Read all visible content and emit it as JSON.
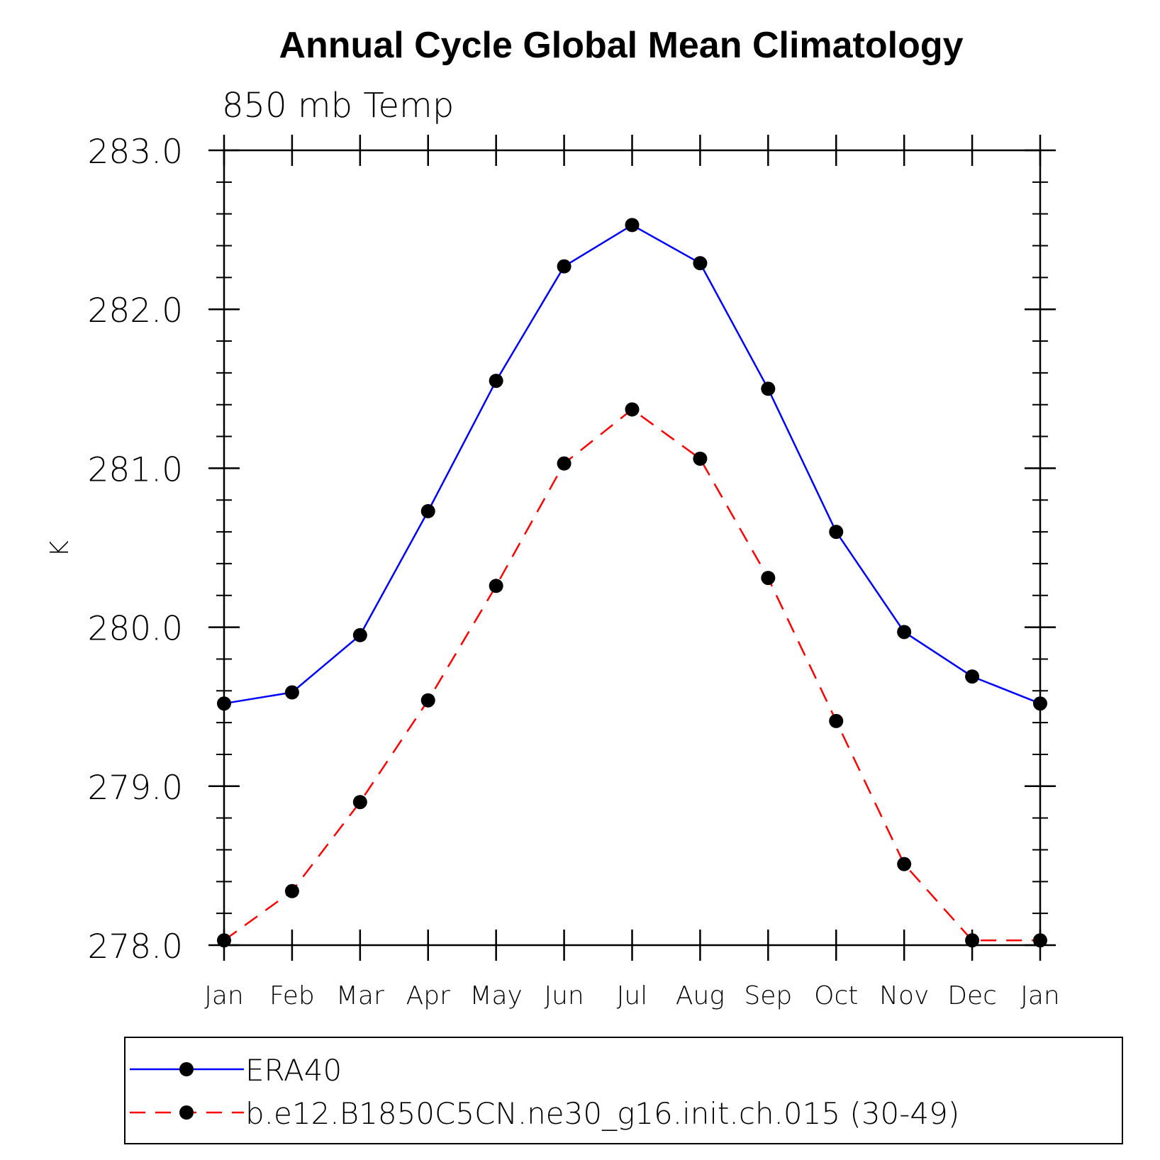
{
  "chart_data": {
    "type": "line",
    "title": "Annual Cycle Global Mean Climatology",
    "subtitle": "850 mb Temp",
    "xlabel": "",
    "ylabel": "K",
    "categories": [
      "Jan",
      "Feb",
      "Mar",
      "Apr",
      "May",
      "Jun",
      "Jul",
      "Aug",
      "Sep",
      "Oct",
      "Nov",
      "Dec",
      "Jan"
    ],
    "ylim": [
      278.0,
      283.0
    ],
    "yticks": [
      278.0,
      279.0,
      280.0,
      281.0,
      282.0,
      283.0
    ],
    "ytick_labels": [
      "278.0",
      "279.0",
      "280.0",
      "281.0",
      "282.0",
      "283.0"
    ],
    "y_minor_step": 0.2,
    "grid": false,
    "legend_position": "bottom",
    "series": [
      {
        "name": "ERA40",
        "color": "#0000ff",
        "dash": "solid",
        "marker": "filled-circle",
        "values": [
          279.52,
          279.59,
          279.95,
          280.73,
          281.55,
          282.27,
          282.53,
          282.29,
          281.5,
          280.6,
          279.97,
          279.69,
          279.52
        ]
      },
      {
        "name": "b.e12.B1850C5CN.ne30_g16.init.ch.015 (30-49)",
        "color": "#ff0000",
        "dash": "dashed",
        "marker": "filled-circle",
        "values": [
          278.03,
          278.34,
          278.9,
          279.54,
          280.26,
          281.03,
          281.37,
          281.06,
          280.31,
          279.41,
          278.51,
          278.03,
          278.03
        ]
      }
    ]
  }
}
